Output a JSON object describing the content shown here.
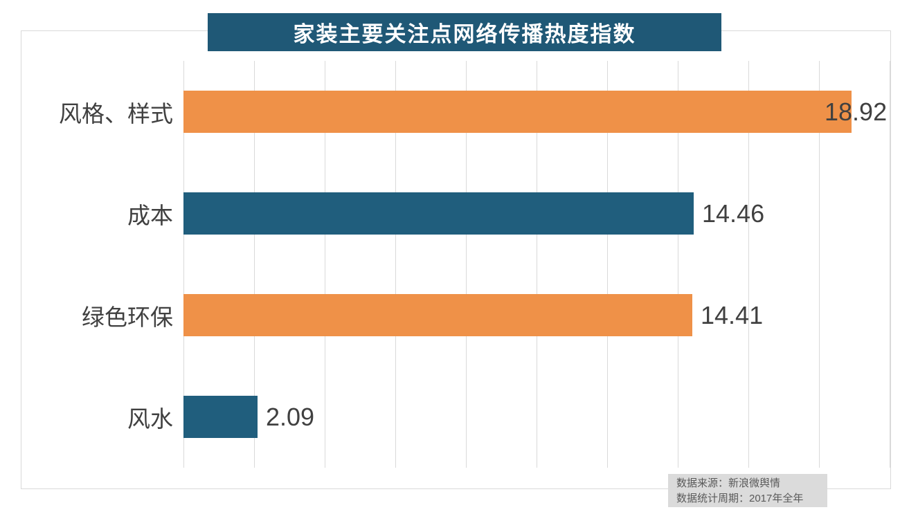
{
  "title": "家装主要关注点网络传播热度指数",
  "chart_data": {
    "type": "bar",
    "orientation": "horizontal",
    "title": "家装主要关注点网络传播热度指数",
    "categories": [
      "风格、样式",
      "成本",
      "绿色环保",
      "风水"
    ],
    "values": [
      18.92,
      14.46,
      14.41,
      2.09
    ],
    "value_labels": [
      "18.92",
      "14.46",
      "14.41",
      "2.09"
    ],
    "bar_colors": [
      "#EF9148",
      "#205E7D",
      "#EF9148",
      "#205E7D"
    ],
    "xlabel": "",
    "ylabel": "",
    "xlim": [
      0,
      20
    ],
    "gridline_step": 2,
    "grid": true,
    "legend": false
  },
  "source": {
    "line1": "数据来源：新浪微舆情",
    "line2": "数据统计周期：2017年全年"
  },
  "colors": {
    "banner_bg": "#1F5876",
    "banner_text": "#FFFFFF",
    "orange": "#EF9148",
    "teal": "#205E7D",
    "gridline": "#D9D9D9",
    "frame": "#D9D9D9",
    "label_text": "#404040",
    "source_bg": "#DBDBDB",
    "source_text": "#595959"
  }
}
